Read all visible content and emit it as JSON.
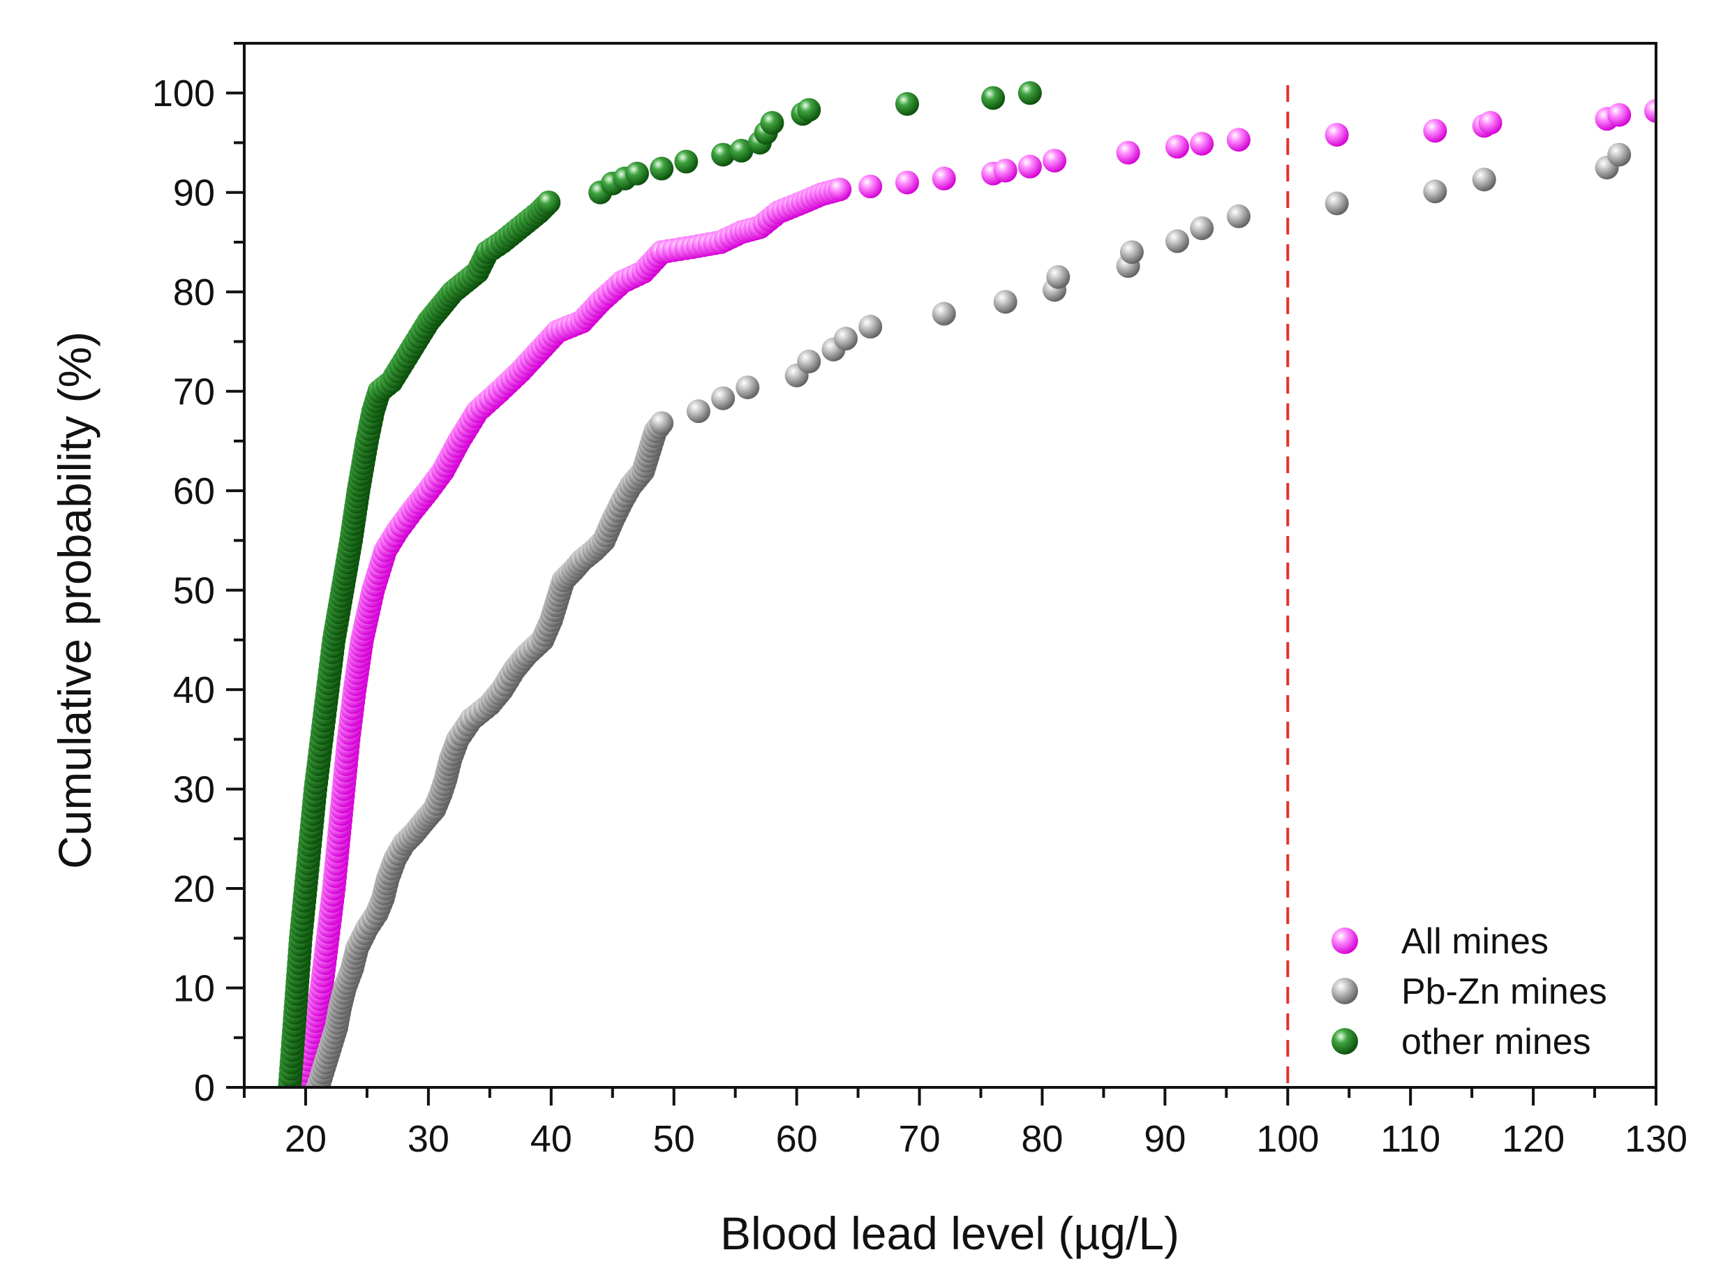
{
  "chart_data": {
    "type": "scatter",
    "title": "",
    "xlabel": "Blood lead level (µg/L)",
    "ylabel": "Cumulative probability (%)",
    "xlim": [
      15,
      130
    ],
    "ylim": [
      0,
      105
    ],
    "x_ticks": [
      20,
      30,
      40,
      50,
      60,
      70,
      80,
      90,
      100,
      110,
      120,
      130
    ],
    "y_ticks": [
      0,
      10,
      20,
      30,
      40,
      50,
      60,
      70,
      80,
      90,
      100
    ],
    "x_tick_labels": [
      "20",
      "30",
      "40",
      "50",
      "60",
      "70",
      "80",
      "90",
      "100",
      "110",
      "120",
      "130"
    ],
    "y_tick_labels": [
      "0",
      "10",
      "20",
      "30",
      "40",
      "50",
      "60",
      "70",
      "80",
      "90",
      "100"
    ],
    "grid": false,
    "legend_position": "bottom-right",
    "reference_line": {
      "axis": "x",
      "value": 100,
      "style": "dashed",
      "color": "#e8312b"
    },
    "series": [
      {
        "name": "All mines",
        "color": "#ff33ff",
        "curve": [
          [
            19.8,
            0
          ],
          [
            20.6,
            5
          ],
          [
            21.3,
            10
          ],
          [
            21.8,
            15
          ],
          [
            22.3,
            20
          ],
          [
            22.7,
            25
          ],
          [
            23.1,
            30
          ],
          [
            23.5,
            35
          ],
          [
            24.0,
            40
          ],
          [
            24.6,
            45
          ],
          [
            25.5,
            50
          ],
          [
            26.5,
            54
          ],
          [
            27.5,
            56
          ],
          [
            28.7,
            58
          ],
          [
            30.0,
            60
          ],
          [
            31.2,
            62
          ],
          [
            32.5,
            65
          ],
          [
            34.0,
            68
          ],
          [
            35.8,
            70
          ],
          [
            37.5,
            72
          ],
          [
            39.0,
            74
          ],
          [
            40.5,
            76
          ],
          [
            42.5,
            77
          ],
          [
            44.0,
            79
          ],
          [
            45.8,
            81
          ],
          [
            47.5,
            82
          ],
          [
            49.0,
            84
          ],
          [
            51.5,
            84.5
          ],
          [
            53.8,
            85
          ],
          [
            55.5,
            86
          ],
          [
            57.0,
            86.5
          ],
          [
            58.5,
            88
          ],
          [
            60.5,
            89
          ],
          [
            62.0,
            89.8
          ],
          [
            63.5,
            90.3
          ]
        ],
        "points": [
          [
            66,
            90.6
          ],
          [
            69,
            91
          ],
          [
            72,
            91.4
          ],
          [
            76,
            91.9
          ],
          [
            77,
            92.2
          ],
          [
            79,
            92.6
          ],
          [
            81,
            93.2
          ],
          [
            87,
            94
          ],
          [
            91,
            94.6
          ],
          [
            93,
            94.9
          ],
          [
            96,
            95.3
          ],
          [
            104,
            95.8
          ],
          [
            112,
            96.2
          ],
          [
            116,
            96.7
          ],
          [
            116.5,
            97
          ],
          [
            126,
            97.4
          ],
          [
            127,
            97.8
          ],
          [
            130,
            98.2
          ]
        ]
      },
      {
        "name": "Pb-Zn mines",
        "color": "#8c8c8c",
        "curve": [
          [
            21.0,
            0
          ],
          [
            21.5,
            2
          ],
          [
            22.0,
            4
          ],
          [
            22.5,
            6
          ],
          [
            22.8,
            8
          ],
          [
            23.2,
            10
          ],
          [
            23.8,
            12
          ],
          [
            24.2,
            14
          ],
          [
            25.0,
            16
          ],
          [
            25.8,
            17.5
          ],
          [
            26.3,
            19
          ],
          [
            26.7,
            21
          ],
          [
            27.3,
            23
          ],
          [
            28.0,
            24.5
          ],
          [
            28.8,
            25.5
          ],
          [
            29.8,
            27
          ],
          [
            30.5,
            28
          ],
          [
            31.0,
            29.5
          ],
          [
            31.4,
            31
          ],
          [
            31.8,
            33
          ],
          [
            32.4,
            35
          ],
          [
            33.5,
            37
          ],
          [
            35.0,
            38.5
          ],
          [
            36.0,
            40
          ],
          [
            37.0,
            42
          ],
          [
            38.0,
            43.5
          ],
          [
            39.3,
            45
          ],
          [
            40.0,
            47
          ],
          [
            40.5,
            49
          ],
          [
            41.0,
            51
          ],
          [
            41.8,
            52
          ],
          [
            42.5,
            53
          ],
          [
            43.5,
            54
          ],
          [
            44.3,
            55
          ],
          [
            45.0,
            57
          ],
          [
            45.8,
            59
          ],
          [
            46.5,
            60.5
          ],
          [
            47.5,
            62
          ],
          [
            48.0,
            64
          ],
          [
            48.5,
            66
          ],
          [
            49.0,
            66.8
          ]
        ],
        "points": [
          [
            52,
            68
          ],
          [
            54,
            69.3
          ],
          [
            56,
            70.4
          ],
          [
            60,
            71.6
          ],
          [
            61,
            73
          ],
          [
            63,
            74.2
          ],
          [
            64,
            75.3
          ],
          [
            66,
            76.5
          ],
          [
            72,
            77.8
          ],
          [
            77,
            79
          ],
          [
            81,
            80.2
          ],
          [
            81.3,
            81.5
          ],
          [
            87,
            82.6
          ],
          [
            87.3,
            84
          ],
          [
            91,
            85.1
          ],
          [
            93,
            86.4
          ],
          [
            96,
            87.6
          ],
          [
            104,
            88.9
          ],
          [
            112,
            90.1
          ],
          [
            116,
            91.3
          ],
          [
            126,
            92.5
          ],
          [
            127,
            93.8
          ]
        ]
      },
      {
        "name": "other mines",
        "color": "#1f7f1f",
        "curve": [
          [
            18.7,
            0
          ],
          [
            19.0,
            5
          ],
          [
            19.3,
            10
          ],
          [
            19.6,
            15
          ],
          [
            20.0,
            20
          ],
          [
            20.4,
            25
          ],
          [
            20.8,
            30
          ],
          [
            21.3,
            35
          ],
          [
            21.8,
            40
          ],
          [
            22.3,
            45
          ],
          [
            23.0,
            50
          ],
          [
            23.7,
            55
          ],
          [
            24.3,
            60
          ],
          [
            25.0,
            65
          ],
          [
            25.5,
            68
          ],
          [
            26.0,
            70
          ],
          [
            27.0,
            71
          ],
          [
            28.0,
            73
          ],
          [
            29.0,
            75
          ],
          [
            30.0,
            77
          ],
          [
            31.0,
            78.5
          ],
          [
            32.0,
            80
          ],
          [
            33.0,
            81
          ],
          [
            34.0,
            82
          ],
          [
            34.8,
            84
          ],
          [
            36.0,
            85
          ],
          [
            37.0,
            86
          ],
          [
            38.0,
            87
          ],
          [
            39.0,
            88
          ],
          [
            39.8,
            89
          ]
        ],
        "points": [
          [
            44,
            90
          ],
          [
            45,
            90.9
          ],
          [
            46,
            91.4
          ],
          [
            47,
            91.9
          ],
          [
            49,
            92.4
          ],
          [
            51,
            93.1
          ],
          [
            54,
            93.8
          ],
          [
            55.5,
            94.2
          ],
          [
            57,
            95
          ],
          [
            57.5,
            96
          ],
          [
            58,
            97
          ],
          [
            60.5,
            97.9
          ],
          [
            61,
            98.3
          ],
          [
            69,
            98.9
          ],
          [
            76,
            99.5
          ],
          [
            79,
            100
          ]
        ]
      }
    ]
  }
}
